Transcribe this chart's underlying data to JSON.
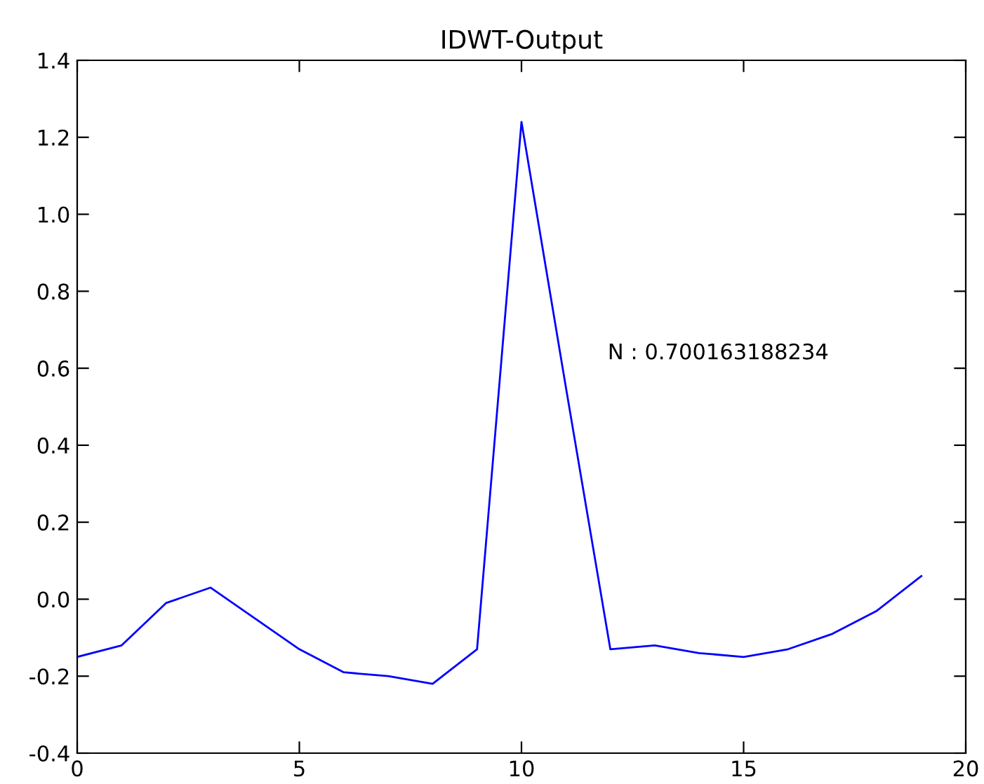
{
  "chart_data": {
    "type": "line",
    "title": "IDWT-Output",
    "x": [
      0,
      1,
      2,
      3,
      4,
      5,
      6,
      7,
      8,
      9,
      10,
      11,
      12,
      13,
      14,
      15,
      16,
      17,
      18,
      19
    ],
    "series": [
      {
        "color": "#0000ff",
        "values": [
          -0.15,
          -0.12,
          -0.01,
          0.03,
          -0.05,
          -0.13,
          -0.19,
          -0.2,
          -0.22,
          -0.13,
          1.24,
          0.55,
          -0.13,
          -0.12,
          -0.14,
          -0.15,
          -0.13,
          -0.09,
          -0.03,
          0.06
        ]
      }
    ],
    "xlim": [
      0,
      20
    ],
    "xticks": [
      0,
      5,
      10,
      15,
      20
    ],
    "ylim": [
      -0.4,
      1.4
    ],
    "yticks": [
      -0.4,
      -0.2,
      {
        "value": 0,
        "label": "0.0"
      },
      0.2,
      0.4,
      0.6,
      0.8,
      {
        "value": 1,
        "label": "1.0"
      },
      1.2,
      1.4
    ],
    "annotations": [
      "N : 0.700163188234"
    ],
    "grid": false,
    "legend": false,
    "marker": "none",
    "line_style": "solid"
  }
}
